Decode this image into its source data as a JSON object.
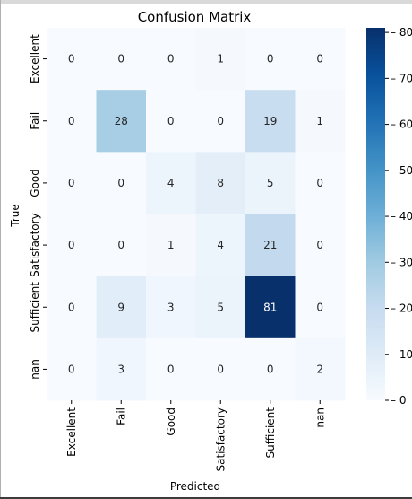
{
  "chart_data": {
    "type": "heatmap",
    "title": "Confusion Matrix",
    "xlabel": "Predicted",
    "ylabel": "True",
    "x_categories": [
      "Excellent",
      "Fail",
      "Good",
      "Satisfactory",
      "Sufficient",
      "nan"
    ],
    "y_categories": [
      "Excellent",
      "Fail",
      "Good",
      "Satisfactory",
      "Sufficient",
      "nan"
    ],
    "values": [
      [
        0,
        0,
        0,
        1,
        0,
        0
      ],
      [
        0,
        28,
        0,
        0,
        19,
        1
      ],
      [
        0,
        0,
        4,
        8,
        5,
        0
      ],
      [
        0,
        0,
        1,
        4,
        21,
        0
      ],
      [
        0,
        9,
        3,
        5,
        81,
        0
      ],
      [
        0,
        3,
        0,
        0,
        0,
        2
      ]
    ],
    "colormap": "Blues",
    "color_low": "#f7fbff",
    "color_high": "#08306b",
    "vmin": 0,
    "vmax": 81,
    "colorbar_ticks": [
      0,
      10,
      20,
      30,
      40,
      50,
      60,
      70,
      80
    ],
    "annotated": true,
    "grid": false,
    "colorbar_position": "right"
  }
}
